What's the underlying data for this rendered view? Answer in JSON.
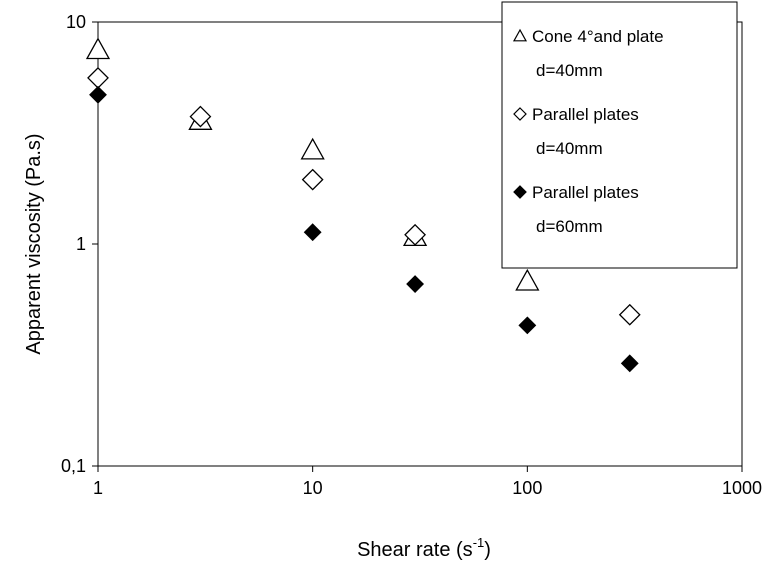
{
  "chart_data": {
    "type": "scatter",
    "xscale": "log",
    "yscale": "log",
    "xlim": [
      1,
      1000
    ],
    "ylim": [
      0.1,
      10
    ],
    "x_ticks": [
      "1",
      "10",
      "100",
      "1000"
    ],
    "y_ticks": [
      "0,1",
      "1",
      "10"
    ],
    "xlabel": "Shear rate (s",
    "xlabel_sup": "-1",
    "xlabel_end": ")",
    "ylabel": "Apparent viscosity (Pa.s)",
    "grid": false,
    "legend_position": "top-right",
    "series": [
      {
        "name": "Cone 4°and plate d=40mm",
        "legend_lines": [
          "Cone 4°and plate",
          "d=40mm"
        ],
        "marker": "open-triangle",
        "points": [
          {
            "x": 1,
            "y": 7.5
          },
          {
            "x": 3,
            "y": 3.6
          },
          {
            "x": 10,
            "y": 2.65
          },
          {
            "x": 30,
            "y": 1.08
          },
          {
            "x": 100,
            "y": 0.68
          }
        ]
      },
      {
        "name": "Parallel plates d=40mm",
        "legend_lines": [
          "Parallel plates",
          "d=40mm"
        ],
        "marker": "open-diamond",
        "points": [
          {
            "x": 1,
            "y": 5.6
          },
          {
            "x": 3,
            "y": 3.75
          },
          {
            "x": 10,
            "y": 1.95
          },
          {
            "x": 30,
            "y": 1.1
          },
          {
            "x": 300,
            "y": 0.48
          }
        ]
      },
      {
        "name": "Parallel plates d=60mm",
        "legend_lines": [
          "Parallel plates",
          "d=60mm"
        ],
        "marker": "filled-diamond",
        "points": [
          {
            "x": 1,
            "y": 4.7
          },
          {
            "x": 10,
            "y": 1.13
          },
          {
            "x": 30,
            "y": 0.66
          },
          {
            "x": 100,
            "y": 0.43
          },
          {
            "x": 300,
            "y": 0.29
          }
        ]
      }
    ]
  }
}
